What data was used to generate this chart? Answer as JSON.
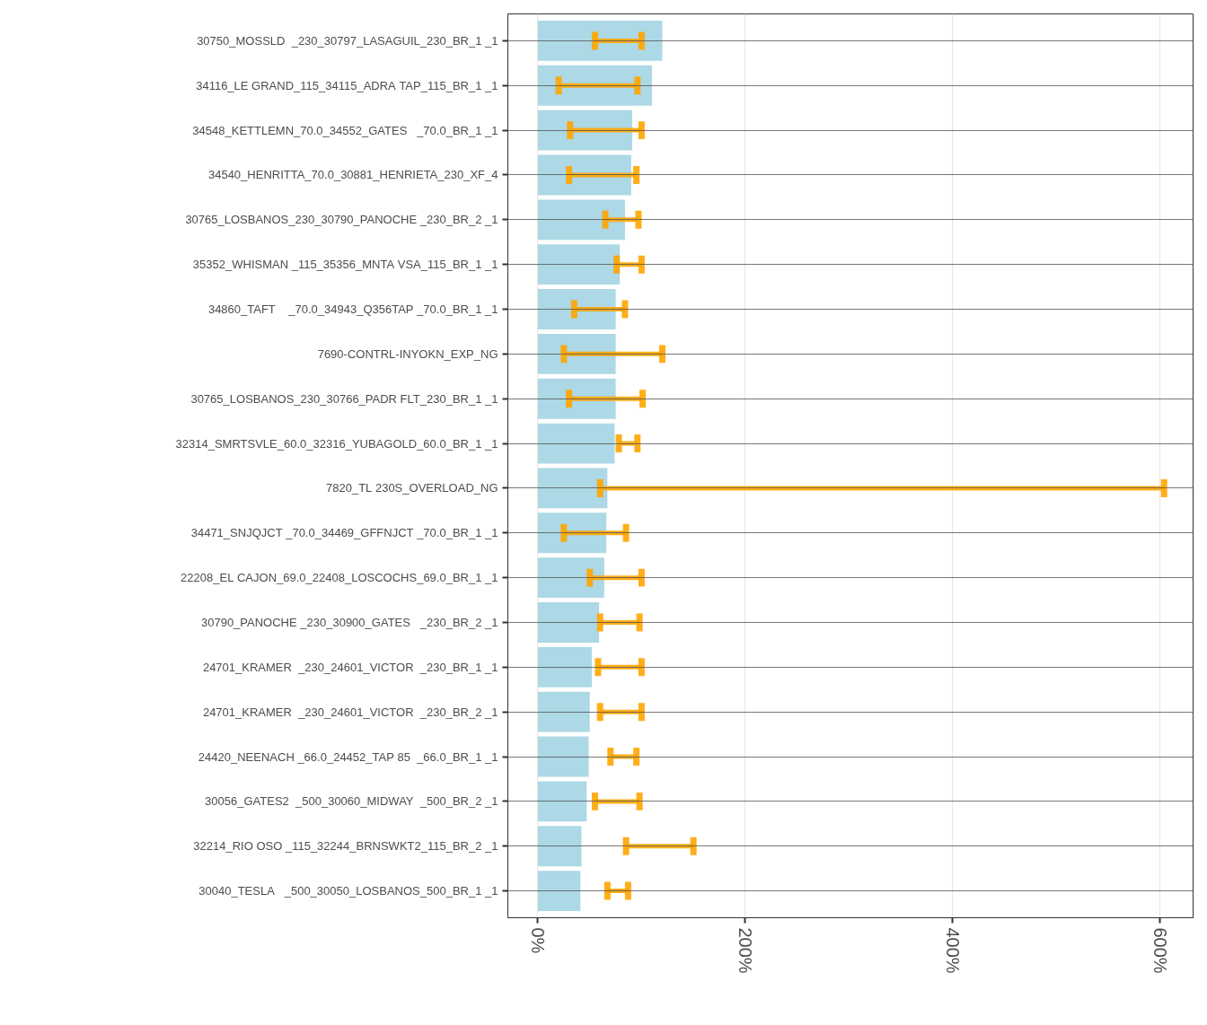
{
  "chart_data": {
    "type": "bar",
    "orientation": "horizontal",
    "categories": [
      "30750_MOSSLD  _230_30797_LASAGUIL_230_BR_1 _1",
      "34116_LE GRAND_115_34115_ADRA TAP_115_BR_1 _1",
      "34548_KETTLEMN_70.0_34552_GATES   _70.0_BR_1 _1",
      "34540_HENRITTA_70.0_30881_HENRIETA_230_XF_4",
      "30765_LOSBANOS_230_30790_PANOCHE _230_BR_2 _1",
      "35352_WHISMAN _115_35356_MNTA VSA_115_BR_1 _1",
      "34860_TAFT    _70.0_34943_Q356TAP _70.0_BR_1 _1",
      "7690-CONTRL-INYOKN_EXP_NG",
      "30765_LOSBANOS_230_30766_PADR FLT_230_BR_1 _1",
      "32314_SMRTSVLE_60.0_32316_YUBAGOLD_60.0_BR_1 _1",
      "7820_TL 230S_OVERLOAD_NG",
      "34471_SNJQJCT _70.0_34469_GFFNJCT _70.0_BR_1 _1",
      "22208_EL CAJON_69.0_22408_LOSCOCHS_69.0_BR_1 _1",
      "30790_PANOCHE _230_30900_GATES   _230_BR_2 _1",
      "24701_KRAMER  _230_24601_VICTOR  _230_BR_1 _1",
      "24701_KRAMER  _230_24601_VICTOR  _230_BR_2 _1",
      "24420_NEENACH _66.0_24452_TAP 85  _66.0_BR_1 _1",
      "30056_GATES2  _500_30060_MIDWAY  _500_BR_2 _1",
      "32214_RIO OSO _115_32244_BRNSWKT2_115_BR_2 _1",
      "30040_TESLA   _500_30050_LOSBANOS_500_BR_1 _1"
    ],
    "values": [
      120,
      110,
      91,
      90,
      84,
      79,
      75,
      75,
      75,
      74,
      67,
      66,
      64,
      59,
      52,
      50,
      49,
      47,
      42,
      41
    ],
    "color": "#add8e6",
    "errors": [
      [
        55,
        100
      ],
      [
        20,
        96
      ],
      [
        31,
        100
      ],
      [
        30,
        95
      ],
      [
        65,
        97
      ],
      [
        76,
        100
      ],
      [
        35,
        84
      ],
      [
        25,
        120
      ],
      [
        30,
        101
      ],
      [
        78,
        96
      ],
      [
        60,
        604
      ],
      [
        25,
        85
      ],
      [
        50,
        100
      ],
      [
        60,
        98
      ],
      [
        58,
        100
      ],
      [
        60,
        100
      ],
      [
        70,
        95
      ],
      [
        55,
        98
      ],
      [
        85,
        150
      ],
      [
        67,
        87
      ]
    ],
    "xlim": [
      -29,
      632
    ],
    "xticks": [
      {
        "value": 0,
        "label": "0%"
      },
      {
        "value": 200,
        "label": "200%"
      },
      {
        "value": 400,
        "label": "400%"
      },
      {
        "value": 600,
        "label": "600%"
      }
    ],
    "grid": true
  }
}
